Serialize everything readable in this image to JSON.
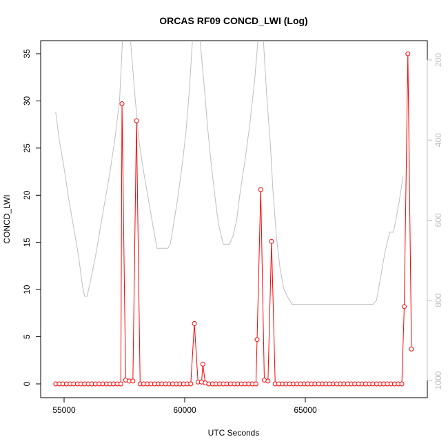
{
  "chart_data": {
    "type": "line",
    "title": "ORCAS RF09 CONCD_LWI (Log)",
    "xlabel": "UTC Seconds",
    "ylabel": "CONCD_LWI",
    "xlim": [
      54600,
      69600
    ],
    "ylim": [
      0,
      35
    ],
    "x_ticks": [
      55000,
      60000,
      65000
    ],
    "y_ticks": [
      0,
      5,
      10,
      15,
      20,
      25,
      30,
      35
    ],
    "y2_ticks": [
      200,
      400,
      600,
      800,
      1000
    ],
    "y2_reversed": true,
    "grid": false,
    "colors": {
      "primary": "#ff0000",
      "secondary": "#bebebe"
    },
    "series": [
      {
        "role": "primary",
        "values_x": [
          54650,
          54800,
          54950,
          55100,
          55250,
          55400,
          55550,
          55700,
          55850,
          56000,
          56150,
          56300,
          56450,
          56600,
          56750,
          56900,
          57050,
          57200,
          57350,
          57400,
          57550,
          57700,
          57850,
          58000,
          58150,
          58300,
          58450,
          58600,
          58750,
          58900,
          59050,
          59200,
          59350,
          59500,
          59650,
          59800,
          59950,
          60100,
          60250,
          60400,
          60550,
          60700,
          60750,
          60850,
          61000,
          61150,
          61300,
          61450,
          61600,
          61750,
          61900,
          62050,
          62200,
          62350,
          62500,
          62650,
          62800,
          62950,
          63000,
          63150,
          63300,
          63450,
          63600,
          63750,
          63900,
          64050,
          64200,
          64350,
          64500,
          64650,
          64800,
          64950,
          65100,
          65250,
          65400,
          65550,
          65700,
          65850,
          66000,
          66150,
          66300,
          66450,
          66600,
          66750,
          66900,
          67050,
          67200,
          67350,
          67500,
          67650,
          67800,
          67950,
          68100,
          68250,
          68400,
          68550,
          68700,
          68850,
          69000,
          69100,
          69250,
          69400
        ],
        "values_y": [
          0,
          0,
          0,
          0,
          0,
          0,
          0,
          0,
          0,
          0,
          0,
          0,
          0,
          0,
          0,
          0,
          0,
          0,
          0,
          29.7,
          0.4,
          0.3,
          0.3,
          27.9,
          0,
          0,
          0,
          0,
          0,
          0,
          0,
          0,
          0,
          0,
          0,
          0,
          0,
          0,
          0,
          6.4,
          0.2,
          0.2,
          2.1,
          0.1,
          0,
          0,
          0,
          0,
          0,
          0,
          0,
          0,
          0,
          0,
          0,
          0,
          0,
          0,
          4.7,
          20.6,
          0.4,
          0.3,
          15.1,
          0,
          0,
          0,
          0,
          0,
          0,
          0,
          0,
          0,
          0,
          0,
          0,
          0,
          0,
          0,
          0,
          0,
          0,
          0,
          0,
          0,
          0,
          0,
          0,
          0,
          0,
          0,
          0,
          0,
          0,
          0,
          0,
          0,
          0,
          0,
          0,
          8.2,
          35.0,
          3.7
        ]
      },
      {
        "role": "secondary",
        "values_x": [
          54650,
          54800,
          55000,
          55200,
          55400,
          55600,
          55750,
          55850,
          55950,
          56100,
          56300,
          56500,
          56700,
          56900,
          57100,
          57300,
          57420,
          57750,
          57950,
          58100,
          58300,
          58500,
          58700,
          58850,
          59000,
          59150,
          59300,
          59400,
          59700,
          59900,
          60050,
          60200,
          60330,
          60620,
          60800,
          60950,
          61100,
          61250,
          61400,
          61600,
          61750,
          61850,
          62000,
          62150,
          62300,
          62500,
          62700,
          62900,
          63050,
          63250,
          63400,
          63550,
          63650,
          63800,
          63950,
          64100,
          64250,
          64450,
          64550,
          64800,
          65000,
          65200,
          65400,
          67800,
          67950,
          68100,
          68300,
          68500,
          68650,
          68750,
          68900,
          69050
        ],
        "values_y": [
          330,
          400,
          470,
          550,
          620,
          690,
          760,
          790,
          790,
          750,
          690,
          620,
          550,
          480,
          400,
          300,
          150,
          150,
          300,
          400,
          480,
          550,
          620,
          670,
          670,
          670,
          670,
          660,
          550,
          460,
          380,
          270,
          140,
          140,
          260,
          370,
          460,
          540,
          610,
          660,
          660,
          660,
          640,
          600,
          530,
          450,
          360,
          250,
          140,
          140,
          290,
          410,
          520,
          640,
          720,
          770,
          790,
          810,
          810,
          810,
          810,
          810,
          810,
          810,
          800,
          750,
          680,
          630,
          630,
          600,
          550,
          490
        ]
      }
    ]
  }
}
